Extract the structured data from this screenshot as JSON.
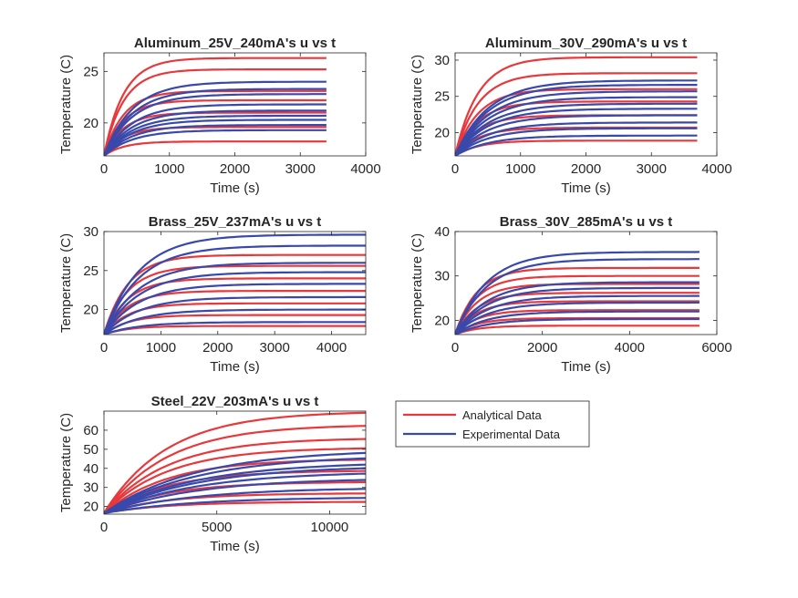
{
  "colors": {
    "analytical": "#e8383b",
    "experimental": "#3949ab",
    "axis": "#262626",
    "background": "#ffffff"
  },
  "legend": {
    "placement": "right-of-bottom-left-subplot",
    "entries": [
      "Analytical Data",
      "Experimental Data"
    ]
  },
  "chart_data": [
    {
      "type": "line",
      "title": "Aluminum_25V_240mA's u vs t",
      "xlabel": "Time (s)",
      "ylabel": "Temperature (C)",
      "xlim": [
        0,
        4000
      ],
      "ylim": [
        16.8,
        26.8
      ],
      "xticks": [
        0,
        1000,
        2000,
        3000,
        4000
      ],
      "yticks": [
        20,
        25
      ],
      "t_end": 3400,
      "u0": 16.8,
      "tau": 300,
      "series": [
        {
          "name": "Analytical Data",
          "finals": [
            18.2,
            19.6,
            21.0,
            22.2,
            23.1,
            25.2,
            26.3
          ]
        },
        {
          "name": "Experimental Data",
          "finals": [
            19.3,
            19.8,
            20.3,
            20.7,
            21.2,
            21.8,
            22.8,
            23.3,
            24.0
          ]
        }
      ]
    },
    {
      "type": "line",
      "title": "Aluminum_30V_290mA's u vs t",
      "xlabel": "Time (s)",
      "ylabel": "Temperature (C)",
      "xlim": [
        0,
        4000
      ],
      "ylim": [
        16.8,
        31
      ],
      "xticks": [
        0,
        1000,
        2000,
        3000,
        4000
      ],
      "yticks": [
        20,
        25,
        30
      ],
      "t_end": 3700,
      "u0": 16.8,
      "tau": 350,
      "series": [
        {
          "name": "Analytical Data",
          "finals": [
            18.9,
            20.7,
            22.4,
            24.3,
            26.0,
            28.2,
            30.4
          ]
        },
        {
          "name": "Experimental Data",
          "finals": [
            19.6,
            20.6,
            21.4,
            22.4,
            23.3,
            24.0,
            24.9,
            25.7,
            26.6,
            27.2
          ]
        }
      ]
    },
    {
      "type": "line",
      "title": "Brass_25V_237mA's u vs t",
      "xlabel": "Time (s)",
      "ylabel": "Temperature (C)",
      "xlim": [
        0,
        4600
      ],
      "ylim": [
        16.8,
        30
      ],
      "xticks": [
        0,
        1000,
        2000,
        3000,
        4000
      ],
      "yticks": [
        20,
        25,
        30
      ],
      "t_end": 4600,
      "u0": 16.8,
      "tau": 420,
      "series": [
        {
          "name": "Analytical Data",
          "finals": [
            17.9,
            19.3,
            20.8,
            22.4,
            24.0,
            25.6,
            27.0
          ]
        },
        {
          "name": "Experimental Data",
          "finals": [
            18.4,
            20.0,
            21.6,
            23.3,
            24.8,
            26.0,
            28.2,
            29.6
          ]
        }
      ]
    },
    {
      "type": "line",
      "title": "Brass_30V_285mA's u vs t",
      "xlabel": "Time (s)",
      "ylabel": "Temperature (C)",
      "xlim": [
        0,
        6000
      ],
      "ylim": [
        16.8,
        40
      ],
      "xticks": [
        0,
        2000,
        4000,
        6000
      ],
      "yticks": [
        20,
        30,
        40
      ],
      "t_end": 5600,
      "u0": 16.8,
      "tau": 500,
      "series": [
        {
          "name": "Analytical Data",
          "finals": [
            18.8,
            20.5,
            22.3,
            24.3,
            26.2,
            28.2,
            30.0,
            31.8
          ]
        },
        {
          "name": "Experimental Data",
          "finals": [
            20.3,
            22.0,
            24.0,
            25.5,
            27.3,
            28.6,
            33.8,
            35.4
          ]
        }
      ]
    },
    {
      "type": "line",
      "title": "Steel_22V_203mA's u vs t",
      "xlabel": "Time (s)",
      "ylabel": "Temperature (C)",
      "xlim": [
        0,
        11600
      ],
      "ylim": [
        16,
        70
      ],
      "xticks": [
        0,
        5000,
        10000
      ],
      "yticks": [
        20,
        30,
        40,
        50,
        60
      ],
      "t_end": 11600,
      "u0": 16.5,
      "tau": 2800,
      "series": [
        {
          "name": "Analytical Data",
          "finals": [
            22.5,
            27.0,
            33.0,
            39.0,
            45.0,
            51.0,
            56.0,
            63.0,
            70.0
          ]
        },
        {
          "name": "Experimental Data",
          "finals": [
            25.0,
            30.0,
            35.0,
            38.5,
            41.5,
            43.5,
            47.0,
            50.0
          ]
        }
      ]
    }
  ]
}
